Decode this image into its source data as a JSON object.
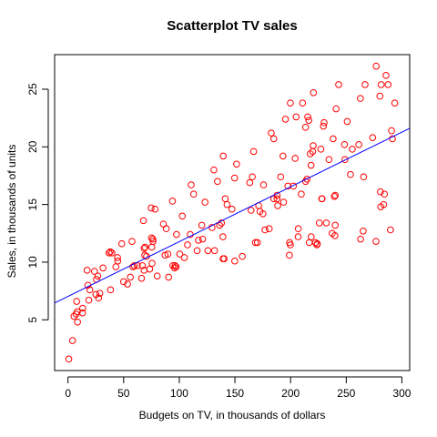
{
  "chart_data": {
    "type": "scatter",
    "title": "Scatterplot TV sales",
    "xlabel": "Budgets on TV, in thousands of dollars",
    "ylabel": "Sales, in thousands of units",
    "xlim": [
      -12,
      307
    ],
    "ylim": [
      0.6,
      28
    ],
    "xticks": [
      0,
      50,
      100,
      150,
      200,
      250,
      300
    ],
    "yticks": [
      5,
      10,
      15,
      20,
      25
    ],
    "grid": false,
    "point_color": "#ff0000",
    "line_color": "#0000ff",
    "regression_line": {
      "intercept": 7.03,
      "slope": 0.0475
    },
    "points": [
      [
        0.7,
        1.6
      ],
      [
        4.1,
        3.2
      ],
      [
        5.4,
        5.3
      ],
      [
        7.3,
        5.5
      ],
      [
        7.8,
        6.6
      ],
      [
        8.4,
        5.7
      ],
      [
        8.6,
        4.8
      ],
      [
        13.1,
        5.6
      ],
      [
        17.2,
        9.3
      ],
      [
        17.9,
        8.0
      ],
      [
        18.7,
        6.7
      ],
      [
        19.6,
        7.6
      ],
      [
        13.2,
        6.0
      ],
      [
        23.8,
        9.2
      ],
      [
        25.1,
        7.2
      ],
      [
        25.6,
        8.5
      ],
      [
        26.8,
        8.8
      ],
      [
        27.5,
        6.9
      ],
      [
        28.6,
        7.3
      ],
      [
        31.5,
        9.5
      ],
      [
        36.9,
        10.8
      ],
      [
        38.0,
        10.9
      ],
      [
        38.2,
        7.6
      ],
      [
        39.5,
        10.8
      ],
      [
        43.0,
        9.6
      ],
      [
        44.5,
        10.4
      ],
      [
        44.7,
        10.1
      ],
      [
        48.3,
        11.6
      ],
      [
        50.0,
        8.3
      ],
      [
        53.5,
        8.1
      ],
      [
        56.0,
        8.7
      ],
      [
        57.5,
        11.8
      ],
      [
        58.4,
        9.6
      ],
      [
        59.6,
        9.7
      ],
      [
        62.3,
        9.7
      ],
      [
        66.1,
        8.6
      ],
      [
        66.9,
        9.7
      ],
      [
        67.8,
        13.6
      ],
      [
        68.4,
        11.2
      ],
      [
        68.4,
        9.3
      ],
      [
        69.0,
        10.6
      ],
      [
        69.2,
        11.3
      ],
      [
        70.6,
        10.5
      ],
      [
        73.4,
        9.4
      ],
      [
        74.7,
        14.7
      ],
      [
        75.1,
        12.1
      ],
      [
        75.3,
        11.3
      ],
      [
        75.5,
        9.9
      ],
      [
        76.3,
        12.0
      ],
      [
        76.4,
        11.8
      ],
      [
        78.2,
        14.6
      ],
      [
        80.2,
        8.8
      ],
      [
        85.7,
        13.3
      ],
      [
        87.2,
        10.6
      ],
      [
        88.3,
        12.9
      ],
      [
        89.7,
        10.7
      ],
      [
        90.4,
        8.7
      ],
      [
        93.9,
        15.3
      ],
      [
        94.2,
        9.7
      ],
      [
        95.7,
        9.5
      ],
      [
        96.2,
        9.7
      ],
      [
        97.2,
        9.6
      ],
      [
        97.5,
        12.4
      ],
      [
        100.4,
        10.7
      ],
      [
        102.7,
        14.0
      ],
      [
        104.6,
        10.4
      ],
      [
        107.4,
        11.5
      ],
      [
        109.8,
        12.4
      ],
      [
        110.7,
        16.7
      ],
      [
        112.9,
        15.9
      ],
      [
        116.0,
        11.0
      ],
      [
        117.2,
        11.9
      ],
      [
        120.2,
        13.2
      ],
      [
        121.0,
        12.0
      ],
      [
        123.1,
        15.2
      ],
      [
        125.7,
        11.0
      ],
      [
        129.4,
        13.0
      ],
      [
        131.1,
        18.0
      ],
      [
        131.7,
        11.0
      ],
      [
        134.3,
        17.0
      ],
      [
        136.2,
        13.2
      ],
      [
        137.9,
        13.4
      ],
      [
        139.2,
        12.2
      ],
      [
        139.3,
        10.3
      ],
      [
        139.5,
        19.2
      ],
      [
        140.3,
        10.3
      ],
      [
        141.3,
        15.5
      ],
      [
        142.9,
        15.0
      ],
      [
        147.3,
        14.6
      ],
      [
        149.7,
        17.3
      ],
      [
        149.8,
        10.1
      ],
      [
        151.5,
        18.5
      ],
      [
        156.6,
        10.5
      ],
      [
        163.3,
        16.9
      ],
      [
        164.5,
        14.5
      ],
      [
        165.6,
        17.4
      ],
      [
        166.8,
        19.6
      ],
      [
        168.4,
        11.7
      ],
      [
        170.2,
        11.7
      ],
      [
        171.3,
        14.9
      ],
      [
        172.5,
        14.4
      ],
      [
        175.1,
        14.2
      ],
      [
        175.7,
        16.7
      ],
      [
        177.0,
        12.8
      ],
      [
        180.8,
        12.9
      ],
      [
        182.6,
        21.2
      ],
      [
        184.9,
        15.5
      ],
      [
        184.9,
        20.7
      ],
      [
        187.8,
        15.5
      ],
      [
        187.9,
        15.8
      ],
      [
        188.4,
        14.9
      ],
      [
        191.1,
        17.4
      ],
      [
        193.2,
        19.2
      ],
      [
        193.7,
        15.2
      ],
      [
        195.4,
        22.4
      ],
      [
        197.6,
        16.6
      ],
      [
        198.9,
        10.6
      ],
      [
        199.1,
        11.7
      ],
      [
        199.8,
        11.5
      ],
      [
        199.8,
        23.8
      ],
      [
        202.5,
        16.6
      ],
      [
        204.1,
        19.0
      ],
      [
        205.0,
        22.6
      ],
      [
        206.8,
        12.2
      ],
      [
        206.9,
        12.9
      ],
      [
        209.6,
        15.9
      ],
      [
        210.8,
        23.8
      ],
      [
        213.4,
        21.7
      ],
      [
        213.5,
        17.0
      ],
      [
        214.7,
        17.2
      ],
      [
        215.4,
        22.6
      ],
      [
        216.4,
        22.3
      ],
      [
        216.8,
        11.7
      ],
      [
        217.7,
        19.4
      ],
      [
        218.4,
        18.4
      ],
      [
        218.5,
        12.2
      ],
      [
        219.8,
        19.6
      ],
      [
        220.3,
        20.1
      ],
      [
        220.5,
        24.7
      ],
      [
        222.4,
        11.7
      ],
      [
        223.6,
        11.5
      ],
      [
        224.0,
        11.6
      ],
      [
        225.8,
        13.4
      ],
      [
        227.2,
        19.8
      ],
      [
        228.0,
        15.5
      ],
      [
        228.3,
        15.5
      ],
      [
        229.5,
        21.8
      ],
      [
        230.1,
        22.1
      ],
      [
        232.1,
        13.4
      ],
      [
        234.5,
        18.9
      ],
      [
        237.4,
        12.5
      ],
      [
        238.2,
        20.7
      ],
      [
        239.3,
        15.7
      ],
      [
        239.8,
        12.3
      ],
      [
        240.1,
        13.2
      ],
      [
        240.1,
        15.8
      ],
      [
        240.9,
        23.3
      ],
      [
        243.2,
        25.4
      ],
      [
        248.4,
        20.2
      ],
      [
        248.8,
        18.9
      ],
      [
        250.9,
        22.2
      ],
      [
        253.8,
        17.6
      ],
      [
        255.4,
        19.8
      ],
      [
        261.3,
        20.2
      ],
      [
        262.7,
        24.2
      ],
      [
        262.9,
        12.0
      ],
      [
        265.2,
        12.7
      ],
      [
        265.6,
        17.4
      ],
      [
        266.9,
        25.4
      ],
      [
        273.7,
        20.8
      ],
      [
        276.7,
        11.8
      ],
      [
        276.9,
        27.0
      ],
      [
        280.2,
        24.4
      ],
      [
        280.7,
        16.1
      ],
      [
        281.4,
        25.4
      ],
      [
        283.6,
        15.0
      ],
      [
        284.3,
        15.9
      ],
      [
        285.7,
        26.2
      ],
      [
        287.6,
        25.4
      ],
      [
        289.7,
        12.8
      ],
      [
        290.7,
        21.4
      ],
      [
        291.5,
        20.7
      ],
      [
        293.6,
        23.8
      ],
      [
        281.0,
        14.8
      ]
    ]
  }
}
